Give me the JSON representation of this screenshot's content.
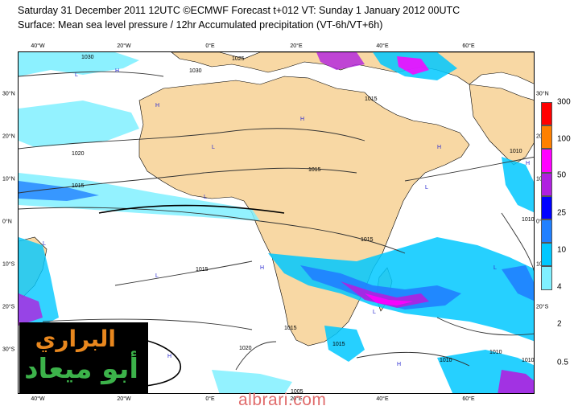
{
  "header": {
    "line1": "Saturday 31 December 2011 12UTC ©ECMWF Forecast t+012 VT: Sunday 1 January 2012 00UTC",
    "line2": "Surface: Mean sea level pressure / 12hr Accumulated precipitation (VT-6h/VT+6h)"
  },
  "map": {
    "lon_labels": [
      "40°W",
      "20°W",
      "0°E",
      "20°E",
      "40°E",
      "60°E"
    ],
    "lat_labels": [
      "30°N",
      "20°N",
      "10°N",
      "0°N",
      "10°S",
      "20°S",
      "30°S"
    ],
    "isobar_labels": [
      "1030",
      "1030",
      "1025",
      "1020",
      "1015",
      "1015",
      "1015",
      "1010",
      "1015",
      "1015",
      "1010",
      "1010",
      "1005",
      "1020",
      "1015",
      "1010",
      "1010",
      "1015"
    ],
    "pressure_centers": [
      "H",
      "L",
      "H",
      "H",
      "L",
      "H",
      "L",
      "L",
      "H",
      "H",
      "L",
      "H",
      "L",
      "L",
      "H",
      "L",
      "H"
    ]
  },
  "colorbar": {
    "labels": [
      "300",
      "100",
      "50",
      "25",
      "10",
      "4",
      "2",
      "0.5"
    ],
    "colors": [
      "#ff0000",
      "#ff8000",
      "#ff00ff",
      "#b020e0",
      "#0000ff",
      "#2080ff",
      "#00c8ff",
      "#80f0ff"
    ]
  },
  "logo": {
    "line1": "البراري",
    "line2": "أبو ميعاد"
  },
  "watermark": "albrari.com"
}
